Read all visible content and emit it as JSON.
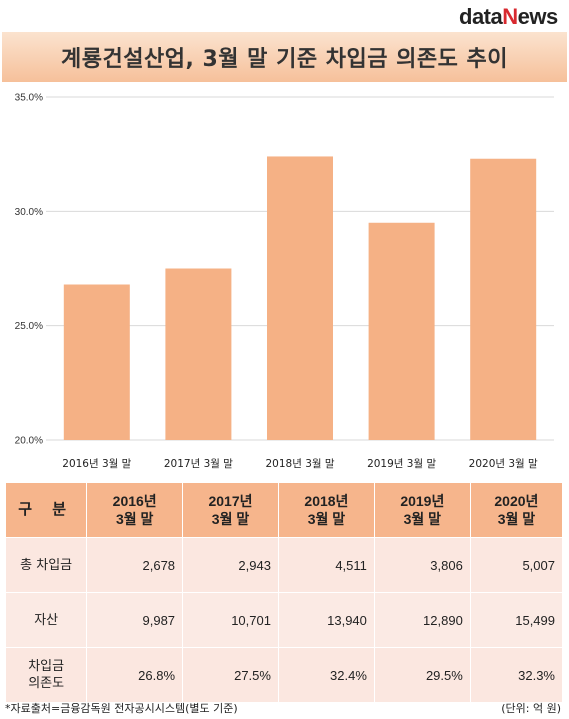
{
  "logo": {
    "part1": "data",
    "part2": "N",
    "part3": "ews"
  },
  "title": "계룡건설산업, 3월 말 기준 차입금 의존도 추이",
  "chart_data": {
    "type": "bar",
    "categories": [
      "2016년 3월 말",
      "2017년 3월 말",
      "2018년 3월 말",
      "2019년 3월 말",
      "2020년 3월 말"
    ],
    "values": [
      26.8,
      27.5,
      32.4,
      29.5,
      32.3
    ],
    "ylim": [
      20,
      35
    ],
    "yticks": [
      "20.0%",
      "25.0%",
      "30.0%",
      "35.0%"
    ],
    "ytick_values": [
      20,
      25,
      30,
      35
    ],
    "grid": true,
    "bar_color": "#f5b185"
  },
  "table": {
    "header": [
      "구 분",
      "2016년\n3월 말",
      "2017년\n3월 말",
      "2018년\n3월 말",
      "2019년\n3월 말",
      "2020년\n3월 말"
    ],
    "rows": [
      {
        "label": "총 차입금",
        "values": [
          "2,678",
          "2,943",
          "4,511",
          "3,806",
          "5,007"
        ]
      },
      {
        "label": "자산",
        "values": [
          "9,987",
          "10,701",
          "13,940",
          "12,890",
          "15,499"
        ]
      },
      {
        "label": "차입금\n의존도",
        "values": [
          "26.8%",
          "27.5%",
          "32.4%",
          "29.5%",
          "32.3%"
        ]
      }
    ]
  },
  "footer": {
    "source": "*자료출처=금융감독원 전자공시시스템(별도 기준)",
    "unit": "(단위: 억 원)"
  }
}
